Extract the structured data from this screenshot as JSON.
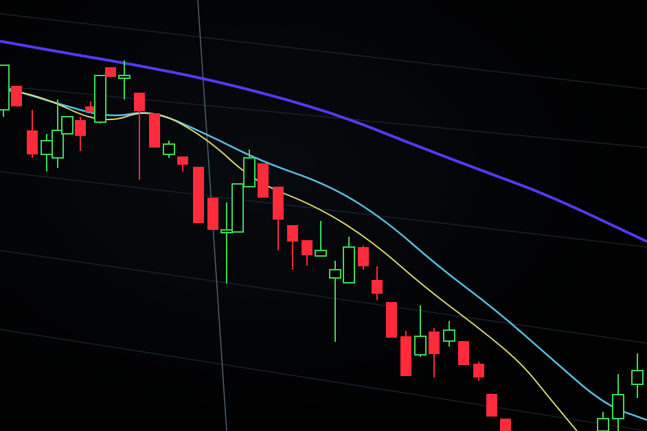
{
  "photo": {
    "subject": "candlestick-chart-on-screen",
    "colors": {
      "background": "#000000",
      "bullish": "#3ddc5a",
      "bearish": "#ff2a3a",
      "ma_slow": "#5a3cff",
      "ma_mid": "#5fc8f0",
      "ma_fast": "#e8e07a",
      "grid": "#1c2a36",
      "crosshair": "#6f8a9a"
    }
  }
}
